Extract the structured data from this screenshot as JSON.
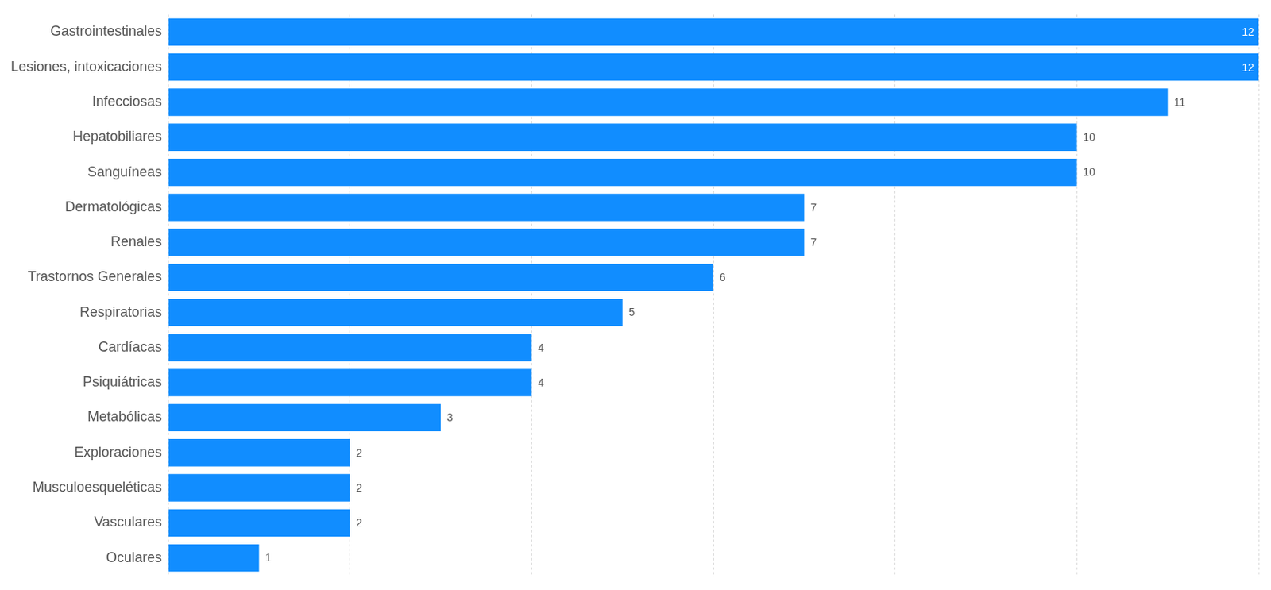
{
  "chart_data": {
    "type": "bar",
    "orientation": "horizontal",
    "categories": [
      "Gastrointestinales",
      "Lesiones, intoxicaciones",
      "Infecciosas",
      "Hepatobiliares",
      "Sanguíneas",
      "Dermatológicas",
      "Renales",
      "Trastornos Generales",
      "Respiratorias",
      "Cardíacas",
      "Psiquiátricas",
      "Metabólicas",
      "Exploraciones",
      "Musculoesqueléticas",
      "Vasculares",
      "Oculares"
    ],
    "values": [
      12,
      12,
      11,
      10,
      10,
      7,
      7,
      6,
      5,
      4,
      4,
      3,
      2,
      2,
      2,
      1
    ],
    "color": "#118dff",
    "xlim": [
      0,
      12
    ],
    "xticks": [
      0,
      2,
      4,
      6,
      8,
      10,
      12
    ],
    "grid": true,
    "data_labels": true,
    "tick_labels": "y"
  }
}
